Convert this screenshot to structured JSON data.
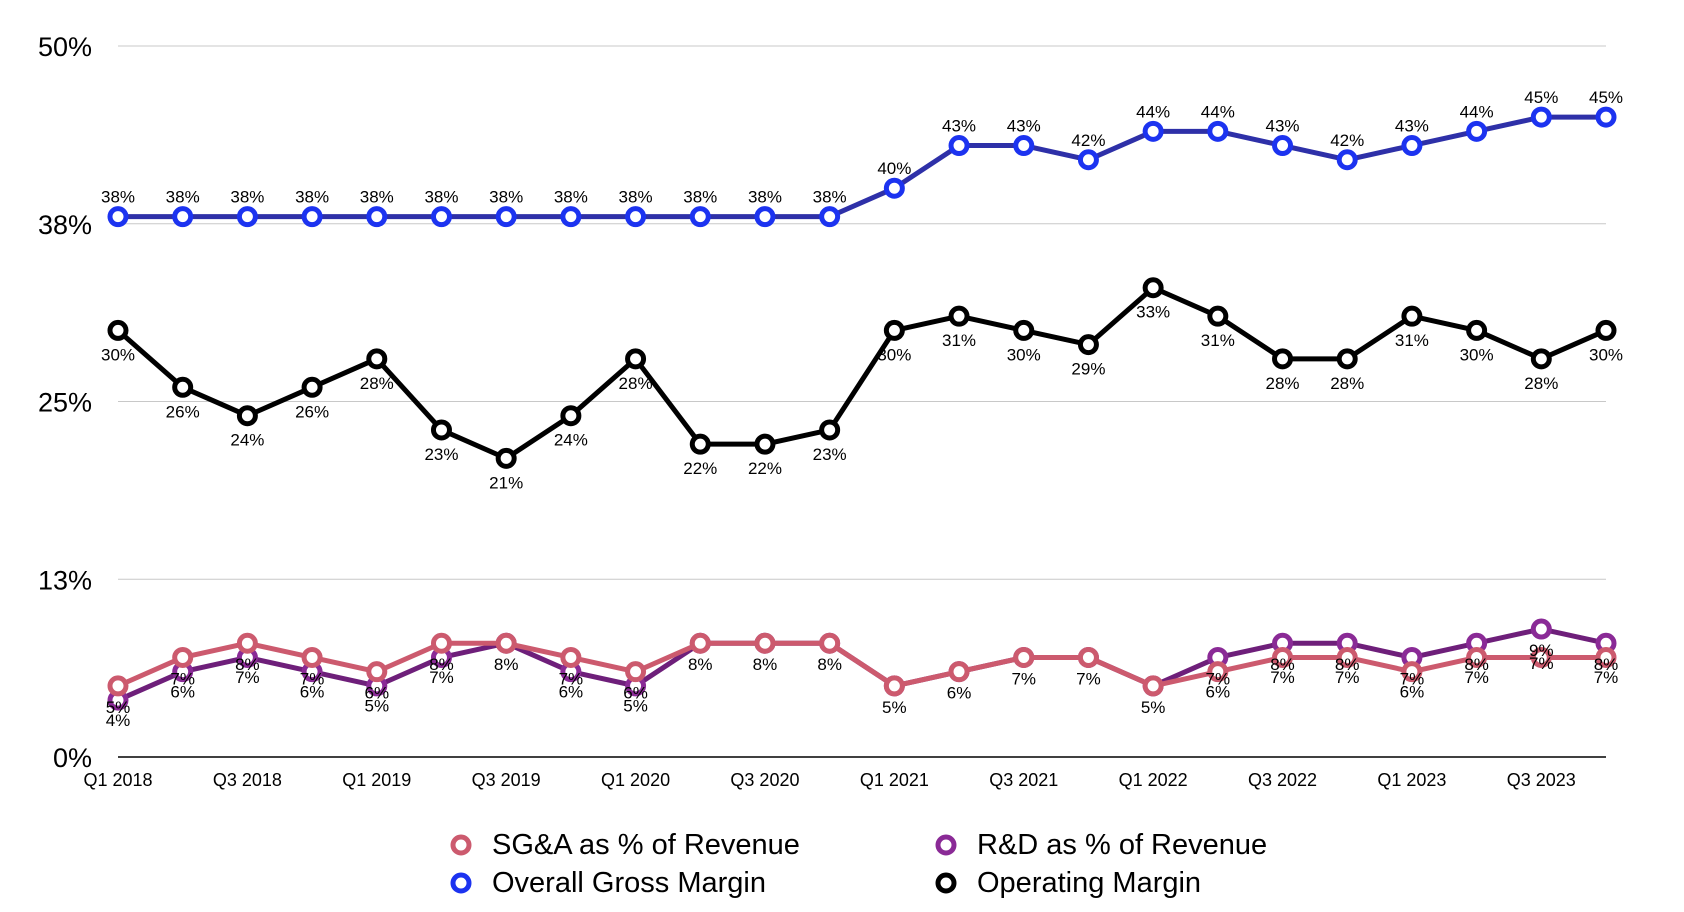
{
  "chart_data": {
    "type": "line",
    "title": "",
    "xlabel": "",
    "ylabel": "",
    "ylim": [
      0,
      50
    ],
    "yticks": [
      0,
      12.5,
      25,
      37.5,
      50
    ],
    "ytick_labels": [
      "0%",
      "13%",
      "25%",
      "38%",
      "50%"
    ],
    "grid": true,
    "legend_position": "bottom",
    "x": [
      "Q1 2018",
      "Q2 2018",
      "Q3 2018",
      "Q4 2018",
      "Q1 2019",
      "Q2 2019",
      "Q3 2019",
      "Q4 2019",
      "Q1 2020",
      "Q2 2020",
      "Q3 2020",
      "Q4 2020",
      "Q1 2021",
      "Q2 2021",
      "Q3 2021",
      "Q4 2021",
      "Q1 2022",
      "Q2 2022",
      "Q3 2022",
      "Q4 2022",
      "Q1 2023",
      "Q2 2023",
      "Q3 2023",
      "Q4 2023"
    ],
    "xtick_labels": [
      "Q1 2018",
      "Q3 2018",
      "Q1 2019",
      "Q3 2019",
      "Q1 2020",
      "Q3 2020",
      "Q1 2021",
      "Q3 2021",
      "Q1 2022",
      "Q3 2022",
      "Q1 2023",
      "Q3 2023"
    ],
    "series": [
      {
        "name": "SG&A as % of Revenue",
        "color": "#cc5a6e",
        "label_pos": "below",
        "values": [
          5,
          7,
          8,
          7,
          6,
          8,
          8,
          7,
          6,
          8,
          8,
          8,
          5,
          6,
          7,
          7,
          5,
          6,
          7,
          7,
          6,
          7,
          7,
          7
        ]
      },
      {
        "name": "R&D as % of Revenue",
        "color": "#6e1f7a",
        "marker_color": "#8a2a96",
        "label_pos": "below",
        "values": [
          4,
          6,
          7,
          6,
          5,
          7,
          8,
          6,
          5,
          8,
          8,
          8,
          5,
          6,
          7,
          7,
          5,
          7,
          8,
          8,
          7,
          8,
          9,
          8
        ]
      },
      {
        "name": "Overall Gross Margin",
        "color": "#2e30a8",
        "marker_color": "#1c33f0",
        "label_pos": "above",
        "values": [
          38,
          38,
          38,
          38,
          38,
          38,
          38,
          38,
          38,
          38,
          38,
          38,
          40,
          43,
          43,
          42,
          44,
          44,
          43,
          42,
          43,
          44,
          45,
          45
        ]
      },
      {
        "name": "Operating Margin",
        "color": "#000000",
        "label_pos": "below",
        "values": [
          30,
          26,
          24,
          26,
          28,
          23,
          21,
          24,
          28,
          22,
          22,
          23,
          30,
          31,
          30,
          29,
          33,
          31,
          28,
          28,
          31,
          30,
          28,
          30
        ]
      }
    ]
  },
  "legend": [
    {
      "label": "SG&A as % of Revenue",
      "color": "#cc5a6e"
    },
    {
      "label": "R&D as % of Revenue",
      "color": "#8a2a96"
    },
    {
      "label": "Overall Gross Margin",
      "color": "#1c33f0"
    },
    {
      "label": "Operating Margin",
      "color": "#000000"
    }
  ]
}
